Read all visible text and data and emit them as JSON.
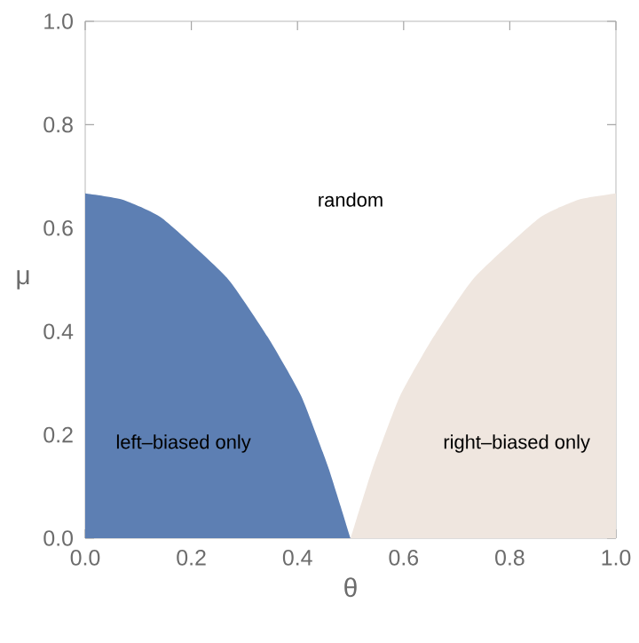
{
  "chart_data": {
    "type": "area",
    "xlabel": "θ",
    "ylabel": "μ",
    "series": [
      {
        "color": "#5d7fb3",
        "x": [
          0,
          0.07,
          0.145,
          0.267,
          0.344,
          0.407,
          0.458,
          0.5
        ],
        "values": [
          0.667,
          0.655,
          0.619,
          0.504,
          0.389,
          0.275,
          0.137,
          0
        ]
      },
      {
        "color": "#efe6df",
        "x": [
          0.5,
          0.542,
          0.593,
          0.656,
          0.733,
          0.855,
          0.93,
          1
        ],
        "values": [
          0,
          0.137,
          0.275,
          0.389,
          0.504,
          0.619,
          0.655,
          0.667
        ]
      }
    ],
    "xlim": [
      0,
      1
    ],
    "ylim": [
      0,
      1
    ],
    "xticks": [
      {
        "value": 0,
        "label": "0.0"
      },
      {
        "value": 0.2,
        "label": "0.2"
      },
      {
        "value": 0.4,
        "label": "0.4"
      },
      {
        "value": 0.6,
        "label": "0.6"
      },
      {
        "value": 0.8,
        "label": "0.8"
      },
      {
        "value": 1,
        "label": "1.0"
      }
    ],
    "yticks": [
      {
        "value": 0,
        "label": "0.0"
      },
      {
        "value": 0.2,
        "label": "0.2"
      },
      {
        "value": 0.4,
        "label": "0.4"
      },
      {
        "value": 0.6,
        "label": "0.6"
      },
      {
        "value": 0.8,
        "label": "0.8"
      },
      {
        "value": 1,
        "label": "1.0"
      }
    ],
    "grid": false,
    "annotations": [
      "random",
      "left–biased only",
      "right–biased only"
    ]
  }
}
